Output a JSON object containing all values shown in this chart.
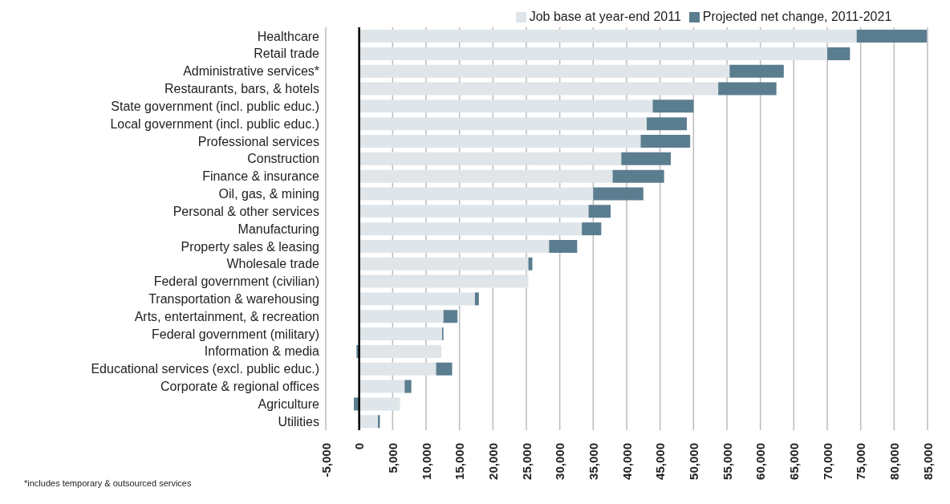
{
  "chart_data": {
    "type": "bar",
    "orientation": "horizontal",
    "stacked": true,
    "categories": [
      "Healthcare",
      "Retail trade",
      "Administrative services*",
      "Restaurants, bars, & hotels",
      "State government (incl. public educ.)",
      "Local government (incl. public educ.)",
      "Professional services",
      "Construction",
      "Finance & insurance",
      "Oil, gas, & mining",
      "Personal & other services",
      "Manufacturing",
      "Property sales & leasing",
      "Wholesale trade",
      "Federal government (civilian)",
      "Transportation & warehousing",
      "Arts, entertainment, & recreation",
      "Federal government (military)",
      "Information & media",
      "Educational services (excl. public educ.)",
      "Corporate & regional offices",
      "Agriculture",
      "Utilities"
    ],
    "series": [
      {
        "name": "Job base at year-end 2011",
        "color": "#dfe5e9",
        "values": [
          74400,
          70000,
          55400,
          53700,
          43900,
          43000,
          42100,
          39200,
          37900,
          35000,
          34300,
          33300,
          28400,
          25300,
          25300,
          17300,
          12600,
          12400,
          12300,
          11500,
          6800,
          6100,
          2800
        ]
      },
      {
        "name": "Projected net change, 2011-2021",
        "color": "#5b7d90",
        "values": [
          10500,
          3400,
          8100,
          8700,
          6100,
          6000,
          7400,
          7400,
          7700,
          7500,
          3300,
          2900,
          4200,
          600,
          0,
          600,
          2100,
          200,
          -400,
          2400,
          1000,
          -800,
          300
        ]
      }
    ],
    "xlim": [
      -5000,
      85000
    ],
    "xticks": [
      {
        "value": -5000,
        "label": "-5,000"
      },
      0,
      {
        "value": 5000,
        "label": "5,000"
      },
      {
        "value": 10000,
        "label": "10,000"
      },
      {
        "value": 15000,
        "label": "15,000"
      },
      {
        "value": 20000,
        "label": "20,000"
      },
      {
        "value": 25000,
        "label": "25,000"
      },
      {
        "value": 30000,
        "label": "30,000"
      },
      {
        "value": 35000,
        "label": "35,000"
      },
      {
        "value": 40000,
        "label": "40,000"
      },
      {
        "value": 45000,
        "label": "45,000"
      },
      {
        "value": 50000,
        "label": "50,000"
      },
      {
        "value": 55000,
        "label": "55,000"
      },
      {
        "value": 60000,
        "label": "60,000"
      },
      {
        "value": 65000,
        "label": "65,000"
      },
      {
        "value": 70000,
        "label": "70,000"
      },
      {
        "value": 75000,
        "label": "75,000"
      },
      {
        "value": 80000,
        "label": "80,000"
      },
      {
        "value": 85000,
        "label": "85,000"
      }
    ],
    "grid": "x",
    "legend": "top",
    "annotations": [
      "*includes temporary & outsourced services"
    ]
  }
}
